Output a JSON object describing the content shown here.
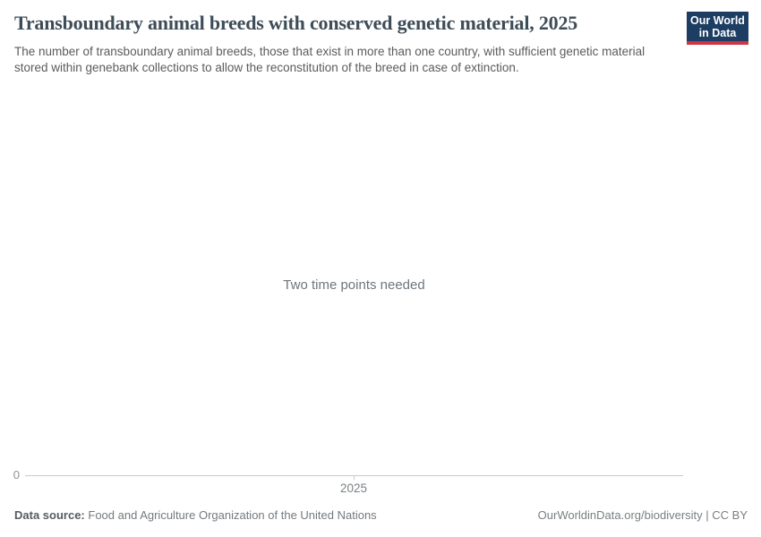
{
  "header": {
    "title": "Transboundary animal breeds with conserved genetic material, 2025",
    "subtitle": "The number of transboundary animal breeds, those that exist in more than one country, with sufficient genetic material stored within genebank collections to allow the reconstitution of the breed in case of extinction.",
    "logo": {
      "line1": "Our World",
      "line2": "in Data"
    }
  },
  "chart_data": {
    "type": "line",
    "title": "Transboundary animal breeds with conserved genetic material, 2025",
    "series": [],
    "x": [],
    "categories": [],
    "values": [],
    "message": "Two time points needed",
    "x_tick_labels": [
      "2025"
    ],
    "y_tick_labels": [
      "0"
    ],
    "xlabel": "",
    "ylabel": "",
    "grid": false,
    "legend": "none"
  },
  "footer": {
    "source_label": "Data source:",
    "source_name": "Food and Agriculture Organization of the United Nations",
    "attribution": "OurWorldinData.org/biodiversity | CC BY"
  },
  "colors": {
    "logo_navy": "#1d3d63",
    "logo_red": "#cf3545",
    "title_text": "#3d4c57",
    "subtitle_text": "#5b5b5b",
    "message_text": "#6e767b",
    "axis_line": "#c7cacc",
    "tick_label": "#7b8185",
    "footer_text": "#757a7e"
  }
}
